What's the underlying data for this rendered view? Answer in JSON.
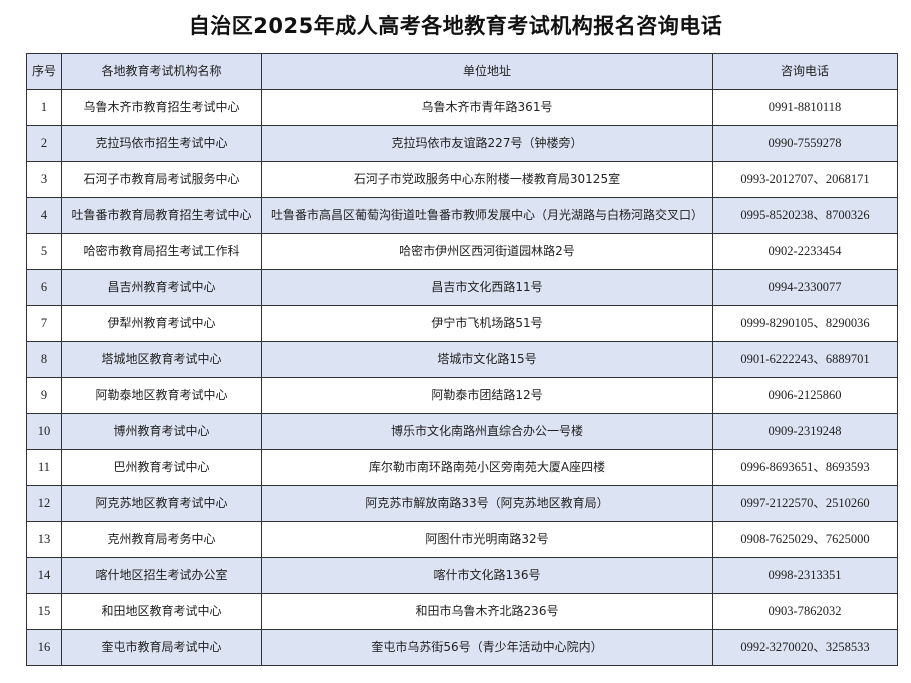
{
  "title": "自治区2025年成人高考各地教育考试机构报名咨询电话",
  "headers": [
    "序号",
    "各地教育考试机构名称",
    "单位地址",
    "咨询电话"
  ],
  "rows": [
    {
      "no": "1",
      "name": "乌鲁木齐市教育招生考试中心",
      "address": "乌鲁木齐市青年路361号",
      "phone": "0991-8810118"
    },
    {
      "no": "2",
      "name": "克拉玛依市招生考试中心",
      "address": "克拉玛依市友谊路227号（钟楼旁）",
      "phone": "0990-7559278"
    },
    {
      "no": "3",
      "name": "石河子市教育局考试服务中心",
      "address": "石河子市党政服务中心东附楼一楼教育局30125室",
      "phone": "0993-2012707、2068171"
    },
    {
      "no": "4",
      "name": "吐鲁番市教育局教育招生考试中心",
      "address": "吐鲁番市高昌区葡萄沟街道吐鲁番市教师发展中心（月光湖路与白杨河路交叉口）",
      "phone": "0995-8520238、8700326"
    },
    {
      "no": "5",
      "name": "哈密市教育局招生考试工作科",
      "address": "哈密市伊州区西河街道园林路2号",
      "phone": "0902-2233454"
    },
    {
      "no": "6",
      "name": "昌吉州教育考试中心",
      "address": "昌吉市文化西路11号",
      "phone": "0994-2330077"
    },
    {
      "no": "7",
      "name": "伊犁州教育考试中心",
      "address": "伊宁市飞机场路51号",
      "phone": "0999-8290105、8290036"
    },
    {
      "no": "8",
      "name": "塔城地区教育考试中心",
      "address": "塔城市文化路15号",
      "phone": "0901-6222243、6889701"
    },
    {
      "no": "9",
      "name": "阿勒泰地区教育考试中心",
      "address": "阿勒泰市团结路12号",
      "phone": "0906-2125860"
    },
    {
      "no": "10",
      "name": "博州教育考试中心",
      "address": "博乐市文化南路州直综合办公一号楼",
      "phone": "0909-2319248"
    },
    {
      "no": "11",
      "name": "巴州教育考试中心",
      "address": "库尔勒市南环路南苑小区旁南苑大厦A座四楼",
      "phone": "0996-8693651、8693593"
    },
    {
      "no": "12",
      "name": "阿克苏地区教育考试中心",
      "address": "阿克苏市解放南路33号（阿克苏地区教育局）",
      "phone": "0997-2122570、2510260"
    },
    {
      "no": "13",
      "name": "克州教育局考务中心",
      "address": "阿图什市光明南路32号",
      "phone": "0908-7625029、7625000"
    },
    {
      "no": "14",
      "name": "喀什地区招生考试办公室",
      "address": "喀什市文化路136号",
      "phone": "0998-2313351"
    },
    {
      "no": "15",
      "name": "和田地区教育考试中心",
      "address": "和田市乌鲁木齐北路236号",
      "phone": "0903-7862032"
    },
    {
      "no": "16",
      "name": "奎屯市教育局考试中心",
      "address": "奎屯市乌苏街56号（青少年活动中心院内）",
      "phone": "0992-3270020、3258533"
    }
  ]
}
